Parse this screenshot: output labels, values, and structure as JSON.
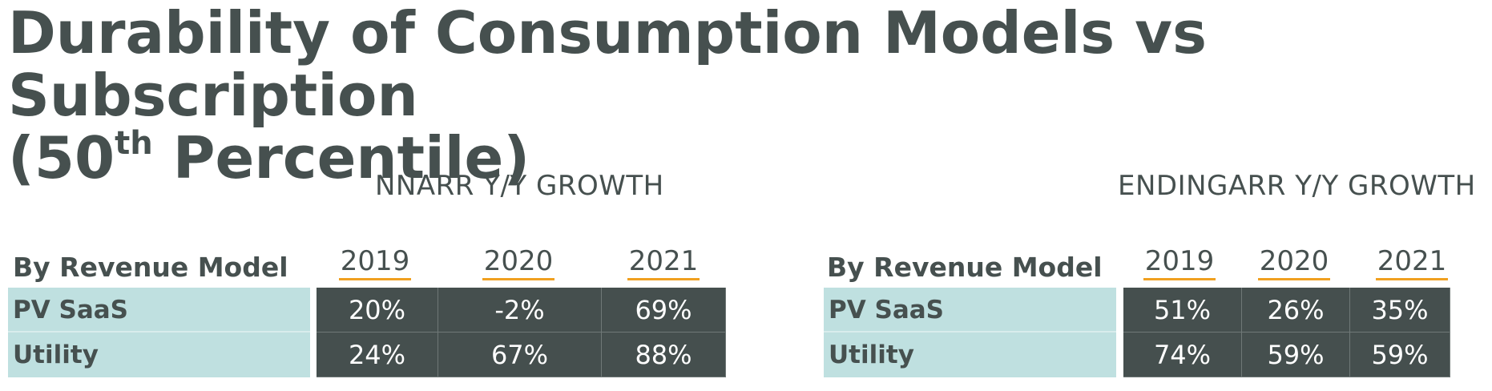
{
  "title": {
    "line1": "Durability of Consumption Models vs Subscription",
    "line2_prefix": "(50",
    "line2_sup": "th",
    "line2_suffix": " Percentile)"
  },
  "tables": [
    {
      "heading": "NNARR Y/Y GROWTH",
      "row_header_label": "By Revenue Model",
      "years": [
        "2019",
        "2020",
        "2021"
      ],
      "rows": [
        {
          "label": "PV SaaS",
          "values": [
            "20%",
            "-2%",
            "69%"
          ]
        },
        {
          "label": "Utility",
          "values": [
            "24%",
            "67%",
            "88%"
          ]
        }
      ]
    },
    {
      "heading": "ENDINGARR Y/Y GROWTH",
      "row_header_label": "By Revenue Model",
      "years": [
        "2019",
        "2020",
        "2021"
      ],
      "rows": [
        {
          "label": "PV SaaS",
          "values": [
            "51%",
            "26%",
            "35%"
          ]
        },
        {
          "label": "Utility",
          "values": [
            "74%",
            "59%",
            "59%"
          ]
        }
      ]
    }
  ],
  "colors": {
    "text": "#46504f",
    "label_fill": "#bfe0e0",
    "value_fill": "#454f4e",
    "year_underline": "#f0a020"
  }
}
